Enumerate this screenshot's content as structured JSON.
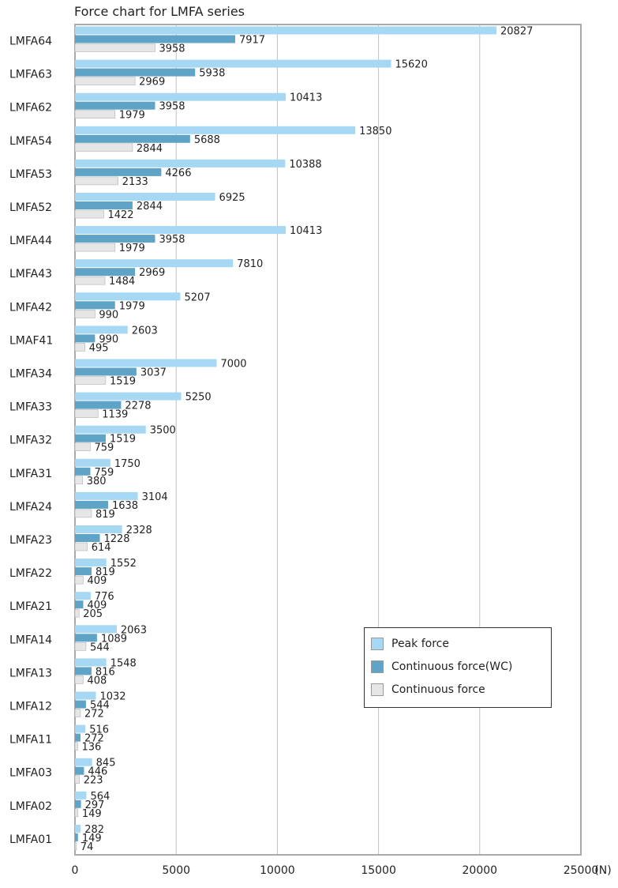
{
  "chart_data": {
    "type": "bar",
    "orientation": "horizontal",
    "title": "Force chart for LMFA series",
    "xlabel": "",
    "ylabel": "",
    "x_unit": "(N)",
    "xlim": [
      0,
      25000
    ],
    "x_ticks": [
      "0",
      "5000",
      "10000",
      "15000",
      "20000",
      "25000"
    ],
    "grid": true,
    "legend_position": "bottom-right",
    "categories": [
      "LMFA64",
      "LMFA63",
      "LMFA62",
      "LMFA54",
      "LMFA53",
      "LMFA52",
      "LMFA44",
      "LMFA43",
      "LMFA42",
      "LMAF41",
      "LMFA34",
      "LMFA33",
      "LMFA32",
      "LMFA31",
      "LMFA24",
      "LMFA23",
      "LMFA22",
      "LMFA21",
      "LMFA14",
      "LMFA13",
      "LMFA12",
      "LMFA11",
      "LMFA03",
      "LMFA02",
      "LMFA01"
    ],
    "series": [
      {
        "name": "Peak force",
        "color": "#a6d8f4",
        "values": [
          20827,
          15620,
          10413,
          13850,
          10388,
          6925,
          10413,
          7810,
          5207,
          2603,
          7000,
          5250,
          3500,
          1750,
          3104,
          2328,
          1552,
          776,
          2063,
          1548,
          1032,
          516,
          845,
          564,
          282
        ]
      },
      {
        "name": "Continuous force(WC)",
        "color": "#5fa3c7",
        "values": [
          7917,
          5938,
          3958,
          5688,
          4266,
          2844,
          3958,
          2969,
          1979,
          990,
          3037,
          2278,
          1519,
          759,
          1638,
          1228,
          819,
          409,
          1089,
          816,
          544,
          272,
          446,
          297,
          149
        ]
      },
      {
        "name": "Continuous force",
        "color": "#e6e6e6",
        "values": [
          3958,
          2969,
          1979,
          2844,
          2133,
          1422,
          1979,
          1484,
          990,
          495,
          1519,
          1139,
          759,
          380,
          819,
          614,
          409,
          205,
          544,
          408,
          272,
          136,
          223,
          149,
          74
        ]
      }
    ]
  }
}
